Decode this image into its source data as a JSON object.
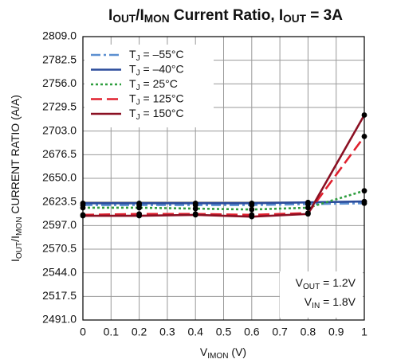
{
  "chart_data": {
    "type": "line",
    "title": [
      {
        "text": "I"
      },
      {
        "text": "OUT",
        "sub": true
      },
      {
        "text": "/I"
      },
      {
        "text": "MON",
        "sub": true
      },
      {
        "text": " Current Ratio, I"
      },
      {
        "text": "OUT",
        "sub": true
      },
      {
        "text": " = 3A"
      }
    ],
    "xlabel": [
      {
        "text": "V"
      },
      {
        "text": "IMON",
        "sub": true
      },
      {
        "text": " (V)"
      }
    ],
    "ylabel": [
      {
        "text": "I"
      },
      {
        "text": "OUT",
        "sub": true
      },
      {
        "text": "/I"
      },
      {
        "text": "MON",
        "sub": true
      },
      {
        "text": " CURRENT RATIO (A/A)"
      }
    ],
    "annotations": [
      [
        {
          "text": "V"
        },
        {
          "text": "OUT",
          "sub": true
        },
        {
          "text": " = 1.2V"
        }
      ],
      [
        {
          "text": "V"
        },
        {
          "text": "IN",
          "sub": true
        },
        {
          "text": " = 1.8V"
        }
      ]
    ],
    "x": [
      0,
      0.2,
      0.4,
      0.6,
      0.8,
      1
    ],
    "series": [
      {
        "name": [
          {
            "text": "T"
          },
          {
            "text": "J",
            "sub": true
          },
          {
            "text": " = –55°C"
          }
        ],
        "color": "#5b8fd0",
        "linestyle": "dashdot",
        "values": [
          2620,
          2620,
          2620,
          2620,
          2621,
          2622
        ]
      },
      {
        "name": [
          {
            "text": "T"
          },
          {
            "text": "J",
            "sub": true
          },
          {
            "text": " = –40°C"
          }
        ],
        "color": "#2b4c9b",
        "linestyle": "solid",
        "values": [
          2622,
          2622,
          2622,
          2622,
          2623,
          2624
        ]
      },
      {
        "name": [
          {
            "text": "T"
          },
          {
            "text": "J",
            "sub": true
          },
          {
            "text": " = 25°C"
          }
        ],
        "color": "#2e9e3e",
        "linestyle": "dotted",
        "values": [
          2617,
          2617,
          2616,
          2615,
          2617,
          2636
        ]
      },
      {
        "name": [
          {
            "text": "T"
          },
          {
            "text": "J",
            "sub": true
          },
          {
            "text": " = 125°C"
          }
        ],
        "color": "#e0202e",
        "linestyle": "dashed",
        "values": [
          2609,
          2610,
          2610,
          2609,
          2611,
          2697
        ]
      },
      {
        "name": [
          {
            "text": "T"
          },
          {
            "text": "J",
            "sub": true
          },
          {
            "text": " = 150°C"
          }
        ],
        "color": "#8b1023",
        "linestyle": "solid",
        "values": [
          2608,
          2608,
          2609,
          2607,
          2610,
          2721
        ]
      }
    ],
    "xlim": [
      0,
      1
    ],
    "xticks": [
      0,
      0.1,
      0.2,
      0.3,
      0.4,
      0.5,
      0.6,
      0.7,
      0.8,
      0.9,
      1
    ],
    "ylim": [
      2491,
      2809
    ],
    "yticks": [
      {
        "value": 2491,
        "label": "2491.0"
      },
      {
        "value": 2517.5,
        "label": "2517.5"
      },
      {
        "value": 2544,
        "label": "2544.0"
      },
      {
        "value": 2570.5,
        "label": "2570.5"
      },
      {
        "value": 2597,
        "label": "2597.0"
      },
      {
        "value": 2623.5,
        "label": "2623.5"
      },
      {
        "value": 2650,
        "label": "2650.0"
      },
      {
        "value": 2676.5,
        "label": "2676.5"
      },
      {
        "value": 2703,
        "label": "2703.0"
      },
      {
        "value": 2729.5,
        "label": "2729.5"
      },
      {
        "value": 2756,
        "label": "2756.0"
      },
      {
        "value": 2782.5,
        "label": "2782.5"
      },
      {
        "value": 2809,
        "label": "2809.0"
      }
    ],
    "grid": true,
    "markers": true,
    "legend": "upper left"
  }
}
